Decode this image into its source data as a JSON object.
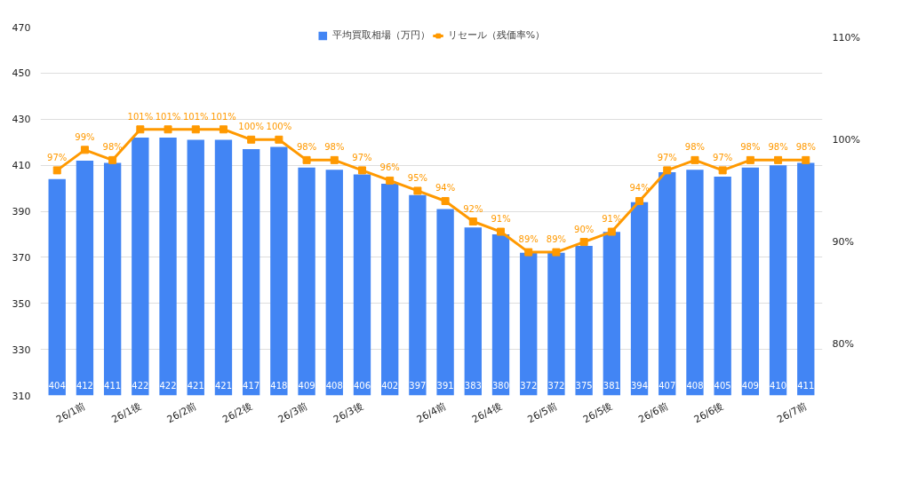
{
  "chart_data": {
    "type": "bar",
    "categories": [
      null,
      "26/1前",
      null,
      "26/1後",
      null,
      "26/2前",
      null,
      "26/2後",
      null,
      "26/3前",
      null,
      "26/3後",
      null,
      null,
      "26/4前",
      null,
      "26/4後",
      null,
      "26/5前",
      null,
      "26/5後",
      null,
      "26/6前",
      null,
      "26/6後",
      null,
      null,
      "26/7前"
    ],
    "series": [
      {
        "name": "平均買取相場（万円）",
        "color": "#4285f4",
        "values": [
          404,
          412,
          411,
          422,
          422,
          421,
          421,
          417,
          418,
          409,
          408,
          406,
          402,
          397,
          391,
          383,
          380,
          372,
          372,
          375,
          381,
          394,
          407,
          408,
          405,
          409,
          410,
          411
        ],
        "value_labels": [
          "404",
          "412",
          "411",
          "422",
          "422",
          "421",
          "421",
          "417",
          "418",
          "409",
          "408",
          "406",
          "402",
          "397",
          "391",
          "383",
          "380",
          "372",
          "372",
          "375",
          "381",
          "394",
          "407",
          "408",
          "405",
          "409",
          "410",
          "411"
        ]
      },
      {
        "name": "リセール（残価率%）",
        "type": "line",
        "axis": "y2",
        "color": "#ff9900",
        "marker": "square",
        "values": [
          97,
          99,
          98,
          101,
          101,
          101,
          101,
          100,
          100,
          98,
          98,
          97,
          96,
          95,
          94,
          92,
          91,
          89,
          89,
          90,
          91,
          94,
          97,
          98,
          97,
          98,
          98,
          98
        ],
        "value_labels": [
          "97%",
          "99%",
          "98%",
          "101%",
          "101%",
          "101%",
          "101%",
          "100%",
          "100%",
          "98%",
          "98%",
          "97%",
          "96%",
          "95%",
          "94%",
          "92%",
          "91%",
          "89%",
          "89%",
          "90%",
          "91%",
          "94%",
          "97%",
          "98%",
          "97%",
          "98%",
          "98%",
          "98%"
        ]
      }
    ],
    "ylim": [
      310,
      470
    ],
    "yticks": [
      310,
      330,
      350,
      370,
      390,
      410,
      430,
      450,
      470
    ],
    "y2lim": [
      75,
      111
    ],
    "y2ticks": [
      {
        "value": 80,
        "label": "80%"
      },
      {
        "value": 90,
        "label": "90%"
      },
      {
        "value": 100,
        "label": "100%"
      },
      {
        "value": 110,
        "label": "110%"
      }
    ],
    "grid": "y",
    "legend": "top"
  }
}
